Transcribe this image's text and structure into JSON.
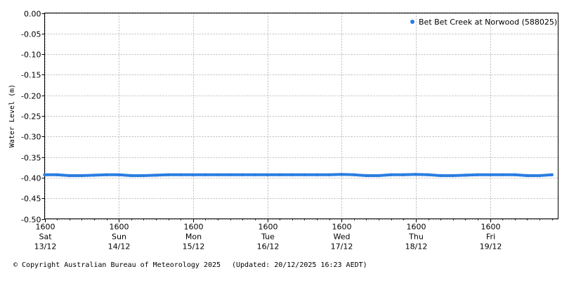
{
  "chart_data": {
    "type": "line",
    "title": "",
    "ylabel": "Water Level (m)",
    "xlabel": "",
    "ylim": [
      -0.5,
      0
    ],
    "yticks": [
      0,
      -0.05,
      -0.1,
      -0.15,
      -0.2,
      -0.25,
      -0.3,
      -0.35,
      -0.4,
      -0.45,
      -0.5
    ],
    "ytick_labels": [
      "0.00",
      "-0.05",
      "-0.10",
      "-0.15",
      "-0.20",
      "-0.25",
      "-0.30",
      "-0.35",
      "-0.40",
      "-0.45",
      "-0.50"
    ],
    "xlim": [
      "2025-12-13 16:00",
      "2025-12-20 14:00"
    ],
    "xticks": [
      {
        "x": "2025-12-13 16:00",
        "lines": [
          "1600",
          "Sat",
          "13/12"
        ]
      },
      {
        "x": "2025-12-14 16:00",
        "lines": [
          "1600",
          "Sun",
          "14/12"
        ]
      },
      {
        "x": "2025-12-15 16:00",
        "lines": [
          "1600",
          "Mon",
          "15/12"
        ]
      },
      {
        "x": "2025-12-16 16:00",
        "lines": [
          "1600",
          "Tue",
          "16/12"
        ]
      },
      {
        "x": "2025-12-17 16:00",
        "lines": [
          "1600",
          "Wed",
          "17/12"
        ]
      },
      {
        "x": "2025-12-18 16:00",
        "lines": [
          "1600",
          "Thu",
          "18/12"
        ]
      },
      {
        "x": "2025-12-19 16:00",
        "lines": [
          "1600",
          "Fri",
          "19/12"
        ]
      }
    ],
    "grid": true,
    "legend_position": "top-right",
    "series": [
      {
        "name": "Bet Bet Creek at Norwood (588025)",
        "color": "#2a7de1",
        "x": [
          "2025-12-13 16:00",
          "2025-12-13 20:00",
          "2025-12-14 00:00",
          "2025-12-14 04:00",
          "2025-12-14 08:00",
          "2025-12-14 12:00",
          "2025-12-14 16:00",
          "2025-12-14 20:00",
          "2025-12-15 00:00",
          "2025-12-15 04:00",
          "2025-12-15 08:00",
          "2025-12-15 12:00",
          "2025-12-15 16:00",
          "2025-12-15 20:00",
          "2025-12-16 00:00",
          "2025-12-16 04:00",
          "2025-12-16 08:00",
          "2025-12-16 12:00",
          "2025-12-16 16:00",
          "2025-12-16 20:00",
          "2025-12-17 00:00",
          "2025-12-17 04:00",
          "2025-12-17 08:00",
          "2025-12-17 12:00",
          "2025-12-17 16:00",
          "2025-12-17 20:00",
          "2025-12-18 00:00",
          "2025-12-18 04:00",
          "2025-12-18 08:00",
          "2025-12-18 12:00",
          "2025-12-18 16:00",
          "2025-12-18 20:00",
          "2025-12-19 00:00",
          "2025-12-19 04:00",
          "2025-12-19 08:00",
          "2025-12-19 12:00",
          "2025-12-19 16:00",
          "2025-12-19 20:00",
          "2025-12-20 00:00",
          "2025-12-20 04:00",
          "2025-12-20 08:00",
          "2025-12-20 12:00"
        ],
        "y": [
          -0.393,
          -0.393,
          -0.395,
          -0.395,
          -0.394,
          -0.393,
          -0.393,
          -0.395,
          -0.395,
          -0.394,
          -0.393,
          -0.393,
          -0.393,
          -0.393,
          -0.393,
          -0.393,
          -0.393,
          -0.393,
          -0.393,
          -0.393,
          -0.393,
          -0.393,
          -0.393,
          -0.393,
          -0.392,
          -0.393,
          -0.395,
          -0.395,
          -0.393,
          -0.393,
          -0.392,
          -0.393,
          -0.395,
          -0.395,
          -0.394,
          -0.393,
          -0.393,
          -0.393,
          -0.393,
          -0.395,
          -0.395,
          -0.393
        ]
      }
    ]
  },
  "footer": {
    "copyright": "© Copyright Australian Bureau of Meteorology 2025",
    "updated": "(Updated: 20/12/2025 16:23 AEDT)"
  }
}
